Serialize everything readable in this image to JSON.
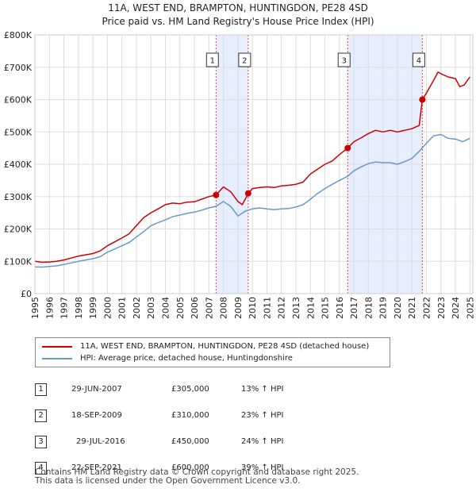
{
  "title_line1": "11A, WEST END, BRAMPTON, HUNTINGDON, PE28 4SD",
  "title_line2": "Price paid vs. HM Land Registry's House Price Index (HPI)",
  "colors": {
    "property": "#cc0000",
    "hpi": "#6699cc",
    "shade": "#e6eeff",
    "marker_line": "#dd4444"
  },
  "chart_data": {
    "type": "line",
    "ylim": [
      0,
      800000
    ],
    "xlim": [
      1995,
      2025.2
    ],
    "yticks": [
      {
        "value": 0,
        "label": "£0"
      },
      {
        "value": 100000,
        "label": "£100K"
      },
      {
        "value": 200000,
        "label": "£200K"
      },
      {
        "value": 300000,
        "label": "£300K"
      },
      {
        "value": 400000,
        "label": "£400K"
      },
      {
        "value": 500000,
        "label": "£500K"
      },
      {
        "value": 600000,
        "label": "£600K"
      },
      {
        "value": 700000,
        "label": "£700K"
      },
      {
        "value": 800000,
        "label": "£800K"
      }
    ],
    "xticks": [
      "1995",
      "1996",
      "1997",
      "1998",
      "1999",
      "2000",
      "2001",
      "2002",
      "2003",
      "2004",
      "2005",
      "2006",
      "2007",
      "2008",
      "2009",
      "2010",
      "2011",
      "2012",
      "2013",
      "2014",
      "2015",
      "2016",
      "2017",
      "2018",
      "2019",
      "2020",
      "2021",
      "2022",
      "2023",
      "2024",
      "2025"
    ],
    "shaded_ranges": [
      [
        2007.49,
        2009.71
      ],
      [
        2016.57,
        2021.72
      ]
    ],
    "series": [
      {
        "name": "11A, WEST END, BRAMPTON, HUNTINGDON, PE28 4SD (detached house)",
        "x": [
          1995,
          1995.5,
          1996,
          1996.5,
          1997,
          1997.5,
          1998,
          1998.5,
          1999,
          1999.5,
          2000,
          2000.5,
          2001,
          2001.5,
          2002,
          2002.5,
          2003,
          2003.5,
          2004,
          2004.5,
          2005,
          2005.5,
          2006,
          2006.5,
          2007,
          2007.49,
          2008,
          2008.5,
          2009,
          2009.3,
          2009.71,
          2010,
          2010.5,
          2011,
          2011.5,
          2012,
          2012.5,
          2013,
          2013.5,
          2014,
          2014.5,
          2015,
          2015.5,
          2016,
          2016.57,
          2017,
          2017.5,
          2018,
          2018.5,
          2019,
          2019.5,
          2020,
          2020.5,
          2021,
          2021.5,
          2021.72,
          2022,
          2022.5,
          2022.8,
          2023,
          2023.5,
          2024,
          2024.3,
          2024.6,
          2025
        ],
        "values": [
          100000,
          97000,
          98000,
          100000,
          104000,
          110000,
          116000,
          120000,
          124000,
          132000,
          148000,
          160000,
          172000,
          185000,
          210000,
          235000,
          250000,
          262000,
          275000,
          280000,
          278000,
          283000,
          284000,
          292000,
          300000,
          305000,
          330000,
          315000,
          285000,
          275000,
          310000,
          325000,
          328000,
          330000,
          328000,
          333000,
          335000,
          338000,
          345000,
          370000,
          385000,
          400000,
          410000,
          430000,
          450000,
          470000,
          482000,
          495000,
          505000,
          500000,
          505000,
          500000,
          505000,
          510000,
          520000,
          600000,
          620000,
          660000,
          685000,
          680000,
          670000,
          665000,
          640000,
          645000,
          670000
        ]
      },
      {
        "name": "HPI: Average price, detached house, Huntingdonshire",
        "x": [
          1995,
          1995.5,
          1996,
          1996.5,
          1997,
          1997.5,
          1998,
          1998.5,
          1999,
          1999.5,
          2000,
          2000.5,
          2001,
          2001.5,
          2002,
          2002.5,
          2003,
          2003.5,
          2004,
          2004.5,
          2005,
          2005.5,
          2006,
          2006.5,
          2007,
          2007.49,
          2008,
          2008.5,
          2009,
          2009.5,
          2010,
          2010.5,
          2011,
          2011.5,
          2012,
          2012.5,
          2013,
          2013.5,
          2014,
          2014.5,
          2015,
          2015.5,
          2016,
          2016.57,
          2017,
          2017.5,
          2018,
          2018.5,
          2019,
          2019.5,
          2020,
          2020.5,
          2021,
          2021.5,
          2022,
          2022.5,
          2023,
          2023.5,
          2024,
          2024.5,
          2025
        ],
        "values": [
          83000,
          82000,
          84000,
          86000,
          90000,
          95000,
          100000,
          104000,
          108000,
          114000,
          128000,
          138000,
          148000,
          158000,
          175000,
          192000,
          210000,
          220000,
          228000,
          238000,
          243000,
          248000,
          252000,
          258000,
          265000,
          270000,
          285000,
          270000,
          240000,
          255000,
          262000,
          265000,
          262000,
          260000,
          262000,
          263000,
          268000,
          275000,
          292000,
          310000,
          325000,
          338000,
          350000,
          363000,
          380000,
          392000,
          402000,
          407000,
          405000,
          405000,
          400000,
          408000,
          418000,
          440000,
          465000,
          488000,
          492000,
          480000,
          478000,
          470000,
          480000
        ]
      }
    ],
    "sales": [
      {
        "label": "1",
        "x": 2007.49,
        "value": 305000
      },
      {
        "label": "2",
        "x": 2009.71,
        "value": 310000
      },
      {
        "label": "3",
        "x": 2016.57,
        "value": 450000
      },
      {
        "label": "4",
        "x": 2021.72,
        "value": 600000
      }
    ]
  },
  "legend": {
    "property": "11A, WEST END, BRAMPTON, HUNTINGDON, PE28 4SD (detached house)",
    "hpi": "HPI: Average price, detached house, Huntingdonshire"
  },
  "sales_table": [
    {
      "num": "1",
      "date": "29-JUN-2007",
      "price": "£305,000",
      "hpi": "13% ↑ HPI"
    },
    {
      "num": "2",
      "date": "18-SEP-2009",
      "price": "£310,000",
      "hpi": "23% ↑ HPI"
    },
    {
      "num": "3",
      "date": "29-JUL-2016",
      "price": "£450,000",
      "hpi": "24% ↑ HPI"
    },
    {
      "num": "4",
      "date": "22-SEP-2021",
      "price": "£600,000",
      "hpi": "39% ↑ HPI"
    }
  ],
  "footer_line1": "Contains HM Land Registry data © Crown copyright and database right 2025.",
  "footer_line2": "This data is licensed under the Open Government Licence v3.0."
}
